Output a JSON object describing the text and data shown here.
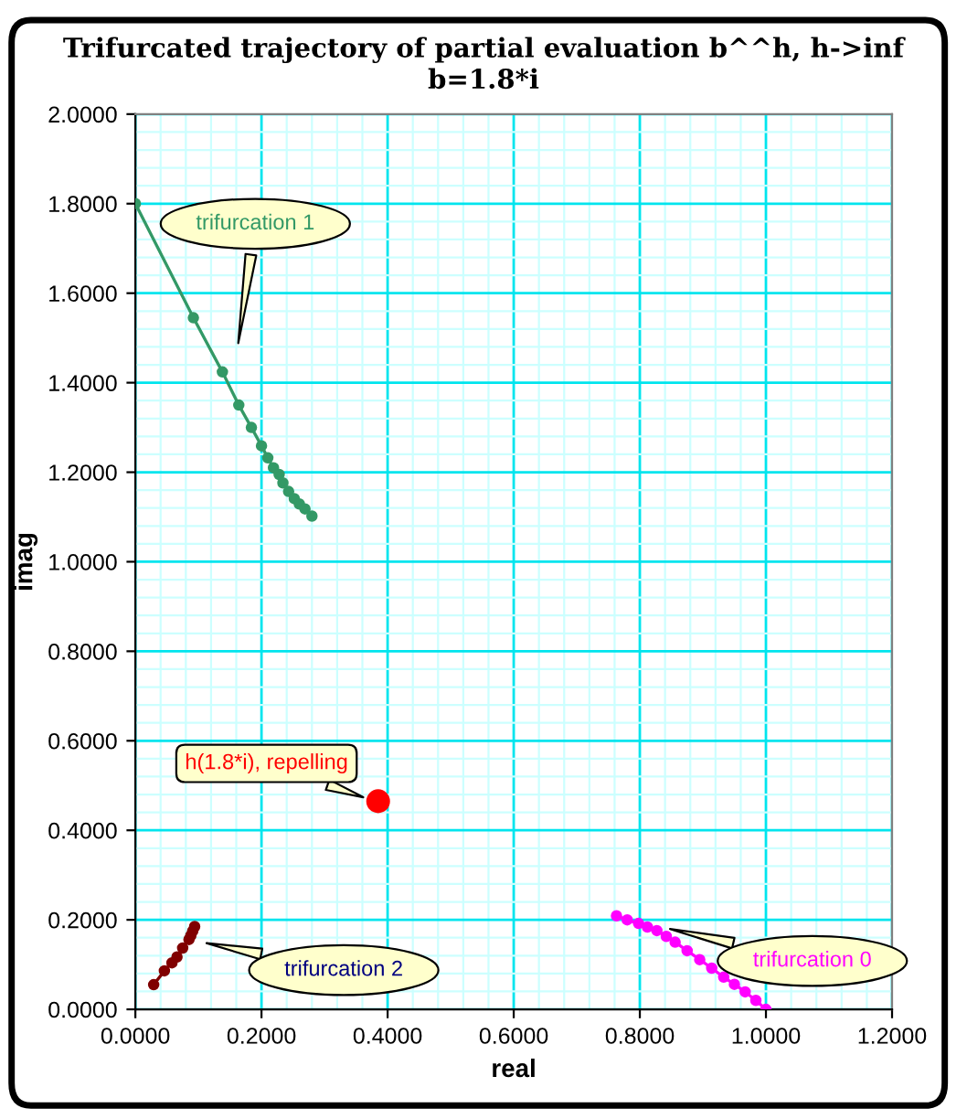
{
  "chart_data": {
    "type": "line",
    "title": "Trifurcated trajectory of partial evaluation b^^h, h->inf\nb=1.8*i",
    "xlabel": "real",
    "ylabel": "imag",
    "xlim": [
      0,
      1.2
    ],
    "ylim": [
      0,
      2.0
    ],
    "xticks": [
      {
        "value": 0,
        "label": "0.0000"
      },
      {
        "value": 0.2,
        "label": "0.2000"
      },
      {
        "value": 0.4,
        "label": "0.4000"
      },
      {
        "value": 0.6,
        "label": "0.6000"
      },
      {
        "value": 0.8,
        "label": "0.8000"
      },
      {
        "value": 1.0,
        "label": "1.0000"
      },
      {
        "value": 1.2,
        "label": "1.2000"
      },
      {
        "value": 0.04,
        "label": null
      },
      {
        "value": 0.08,
        "label": null
      },
      {
        "value": 0.12,
        "label": null
      },
      {
        "value": 0.16,
        "label": null
      },
      {
        "value": 0.24,
        "label": null
      },
      {
        "value": 0.28,
        "label": null
      },
      {
        "value": 0.32,
        "label": null
      },
      {
        "value": 0.36,
        "label": null
      },
      {
        "value": 0.44,
        "label": null
      },
      {
        "value": 0.48,
        "label": null
      },
      {
        "value": 0.52,
        "label": null
      },
      {
        "value": 0.56,
        "label": null
      },
      {
        "value": 0.64,
        "label": null
      },
      {
        "value": 0.68,
        "label": null
      },
      {
        "value": 0.72,
        "label": null
      },
      {
        "value": 0.76,
        "label": null
      },
      {
        "value": 0.84,
        "label": null
      },
      {
        "value": 0.88,
        "label": null
      },
      {
        "value": 0.92,
        "label": null
      },
      {
        "value": 0.96,
        "label": null
      },
      {
        "value": 1.04,
        "label": null
      },
      {
        "value": 1.08,
        "label": null
      },
      {
        "value": 1.12,
        "label": null
      },
      {
        "value": 1.16,
        "label": null
      }
    ],
    "yticks": [
      {
        "value": 0,
        "label": "0.0000"
      },
      {
        "value": 0.2,
        "label": "0.2000"
      },
      {
        "value": 0.4,
        "label": "0.4000"
      },
      {
        "value": 0.6,
        "label": "0.6000"
      },
      {
        "value": 0.8,
        "label": "0.8000"
      },
      {
        "value": 1.0,
        "label": "1.0000"
      },
      {
        "value": 1.2,
        "label": "1.2000"
      },
      {
        "value": 1.4,
        "label": "1.4000"
      },
      {
        "value": 1.6,
        "label": "1.6000"
      },
      {
        "value": 1.8,
        "label": "1.8000"
      },
      {
        "value": 2.0,
        "label": "2.0000"
      },
      {
        "value": 0.04,
        "label": null
      },
      {
        "value": 0.08,
        "label": null
      },
      {
        "value": 0.12,
        "label": null
      },
      {
        "value": 0.16,
        "label": null
      },
      {
        "value": 0.24,
        "label": null
      },
      {
        "value": 0.28,
        "label": null
      },
      {
        "value": 0.32,
        "label": null
      },
      {
        "value": 0.36,
        "label": null
      },
      {
        "value": 0.44,
        "label": null
      },
      {
        "value": 0.48,
        "label": null
      },
      {
        "value": 0.52,
        "label": null
      },
      {
        "value": 0.56,
        "label": null
      },
      {
        "value": 0.64,
        "label": null
      },
      {
        "value": 0.68,
        "label": null
      },
      {
        "value": 0.72,
        "label": null
      },
      {
        "value": 0.76,
        "label": null
      },
      {
        "value": 0.84,
        "label": null
      },
      {
        "value": 0.88,
        "label": null
      },
      {
        "value": 0.92,
        "label": null
      },
      {
        "value": 0.96,
        "label": null
      },
      {
        "value": 1.04,
        "label": null
      },
      {
        "value": 1.08,
        "label": null
      },
      {
        "value": 1.12,
        "label": null
      },
      {
        "value": 1.16,
        "label": null
      },
      {
        "value": 1.24,
        "label": null
      },
      {
        "value": 1.28,
        "label": null
      },
      {
        "value": 1.32,
        "label": null
      },
      {
        "value": 1.36,
        "label": null
      },
      {
        "value": 1.44,
        "label": null
      },
      {
        "value": 1.48,
        "label": null
      },
      {
        "value": 1.52,
        "label": null
      },
      {
        "value": 1.56,
        "label": null
      },
      {
        "value": 1.64,
        "label": null
      },
      {
        "value": 1.68,
        "label": null
      },
      {
        "value": 1.72,
        "label": null
      },
      {
        "value": 1.76,
        "label": null
      },
      {
        "value": 1.84,
        "label": null
      },
      {
        "value": 1.88,
        "label": null
      },
      {
        "value": 1.92,
        "label": null
      },
      {
        "value": 1.96,
        "label": null
      }
    ],
    "grid": true,
    "marker": "circle",
    "line_style": "solid",
    "series": [
      {
        "color": "#339966",
        "x": [
          0,
          0.092,
          0.138,
          0.164,
          0.184,
          0.2,
          0.21,
          0.219,
          0.228,
          0.234,
          0.243,
          0.252,
          0.26,
          0.269,
          0.28
        ],
        "values": [
          1.8,
          1.545,
          1.424,
          1.35,
          1.3,
          1.259,
          1.232,
          1.21,
          1.195,
          1.176,
          1.157,
          1.141,
          1.129,
          1.118,
          1.102
        ]
      },
      {
        "color": "#800000",
        "x": [
          0.029,
          0.046,
          0.058,
          0.066,
          0.075,
          0.085,
          0.088,
          0.091,
          0.094
        ],
        "values": [
          0.055,
          0.086,
          0.104,
          0.117,
          0.137,
          0.156,
          0.165,
          0.175,
          0.185
        ]
      },
      {
        "color": "#ff0000",
        "type": "scatter",
        "x": [
          0.385
        ],
        "values": [
          0.465
        ]
      },
      {
        "color": "#ff00ff",
        "x": [
          0.763,
          0.78,
          0.798,
          0.812,
          0.827,
          0.842,
          0.856,
          0.875,
          0.895,
          0.914,
          0.933,
          0.95,
          0.967,
          0.984,
          1.0
        ],
        "values": [
          0.209,
          0.2,
          0.192,
          0.184,
          0.176,
          0.163,
          0.15,
          0.131,
          0.111,
          0.092,
          0.072,
          0.056,
          0.039,
          0.02,
          0.0
        ]
      }
    ],
    "annotations": [
      "trifurcation 1",
      {
        "text": "h(1.8*i), repelling",
        "x": 0.369,
        "y": 0.47
      },
      {
        "text": "trifurcation 2",
        "x": 0.105,
        "y": 0.15
      },
      {
        "text": "trifurcation 0",
        "x": 0.84,
        "y": 0.182
      }
    ]
  }
}
